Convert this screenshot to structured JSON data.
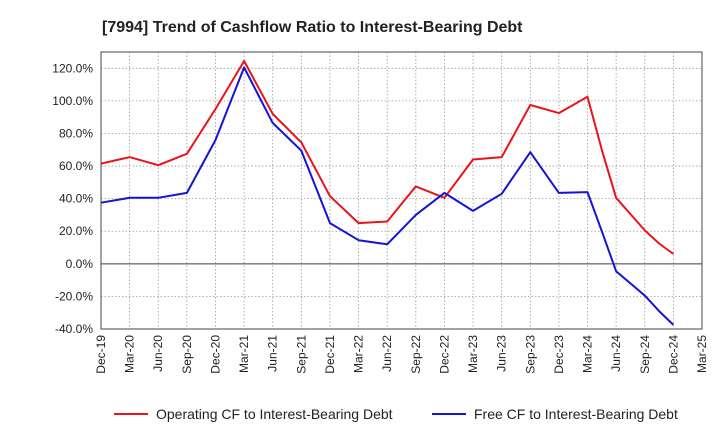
{
  "chart_data": {
    "type": "line",
    "title": "[7994]  Trend of Cashflow Ratio to Interest-Bearing Debt",
    "xlabel": "",
    "ylabel": "",
    "categories": [
      "Dec-19",
      "Mar-20",
      "Jun-20",
      "Sep-20",
      "Dec-20",
      "Mar-21",
      "Jun-21",
      "Sep-21",
      "Dec-21",
      "Mar-22",
      "Jun-22",
      "Sep-22",
      "Dec-22",
      "Mar-23",
      "Jun-23",
      "Sep-23",
      "Dec-23",
      "Mar-24",
      "Jun-24",
      "Sep-24",
      "Dec-24",
      "Mar-25"
    ],
    "ylim": [
      -40,
      130
    ],
    "yticks": [
      -40,
      -20,
      0,
      20,
      40,
      60,
      80,
      100,
      120
    ],
    "ytick_labels": [
      "-40.0%",
      "-20.0%",
      "0.0%",
      "20.0%",
      "40.0%",
      "60.0%",
      "80.0%",
      "100.0%",
      "120.0%"
    ],
    "grid": true,
    "legend_position": "bottom",
    "series": [
      {
        "name": "Operating CF to Interest-Bearing Debt",
        "color": "#e8141c",
        "points": [
          [
            0,
            61.5
          ],
          [
            1,
            65.5
          ],
          [
            2,
            60.5
          ],
          [
            3,
            67.5
          ],
          [
            4,
            95
          ],
          [
            5,
            124.5
          ],
          [
            6,
            92
          ],
          [
            7,
            74.5
          ],
          [
            8,
            41.5
          ],
          [
            9,
            25
          ],
          [
            10,
            26
          ],
          [
            11,
            47.5
          ],
          [
            12,
            40.5
          ],
          [
            13,
            64
          ],
          [
            14,
            65.5
          ],
          [
            15,
            97.5
          ],
          [
            16,
            92.5
          ],
          [
            17,
            102.5
          ],
          [
            17.5,
            70
          ],
          [
            18,
            40.5
          ],
          [
            19,
            20.5
          ],
          [
            19.5,
            12.5
          ],
          [
            20,
            6
          ]
        ]
      },
      {
        "name": "Free CF to Interest-Bearing Debt",
        "color": "#1414d2",
        "points": [
          [
            0,
            37.5
          ],
          [
            1,
            40.5
          ],
          [
            2,
            40.5
          ],
          [
            3,
            43.5
          ],
          [
            4,
            76
          ],
          [
            5,
            120.5
          ],
          [
            6,
            86.5
          ],
          [
            7,
            69.5
          ],
          [
            8,
            25
          ],
          [
            9,
            14.5
          ],
          [
            10,
            12
          ],
          [
            11,
            30
          ],
          [
            12,
            43.5
          ],
          [
            13,
            32.5
          ],
          [
            14,
            43
          ],
          [
            15,
            68.5
          ],
          [
            16,
            43.5
          ],
          [
            17,
            44
          ],
          [
            17.5,
            20
          ],
          [
            18,
            -4.5
          ],
          [
            19,
            -19.5
          ],
          [
            19.5,
            -29
          ],
          [
            20,
            -37.5
          ]
        ]
      }
    ]
  }
}
